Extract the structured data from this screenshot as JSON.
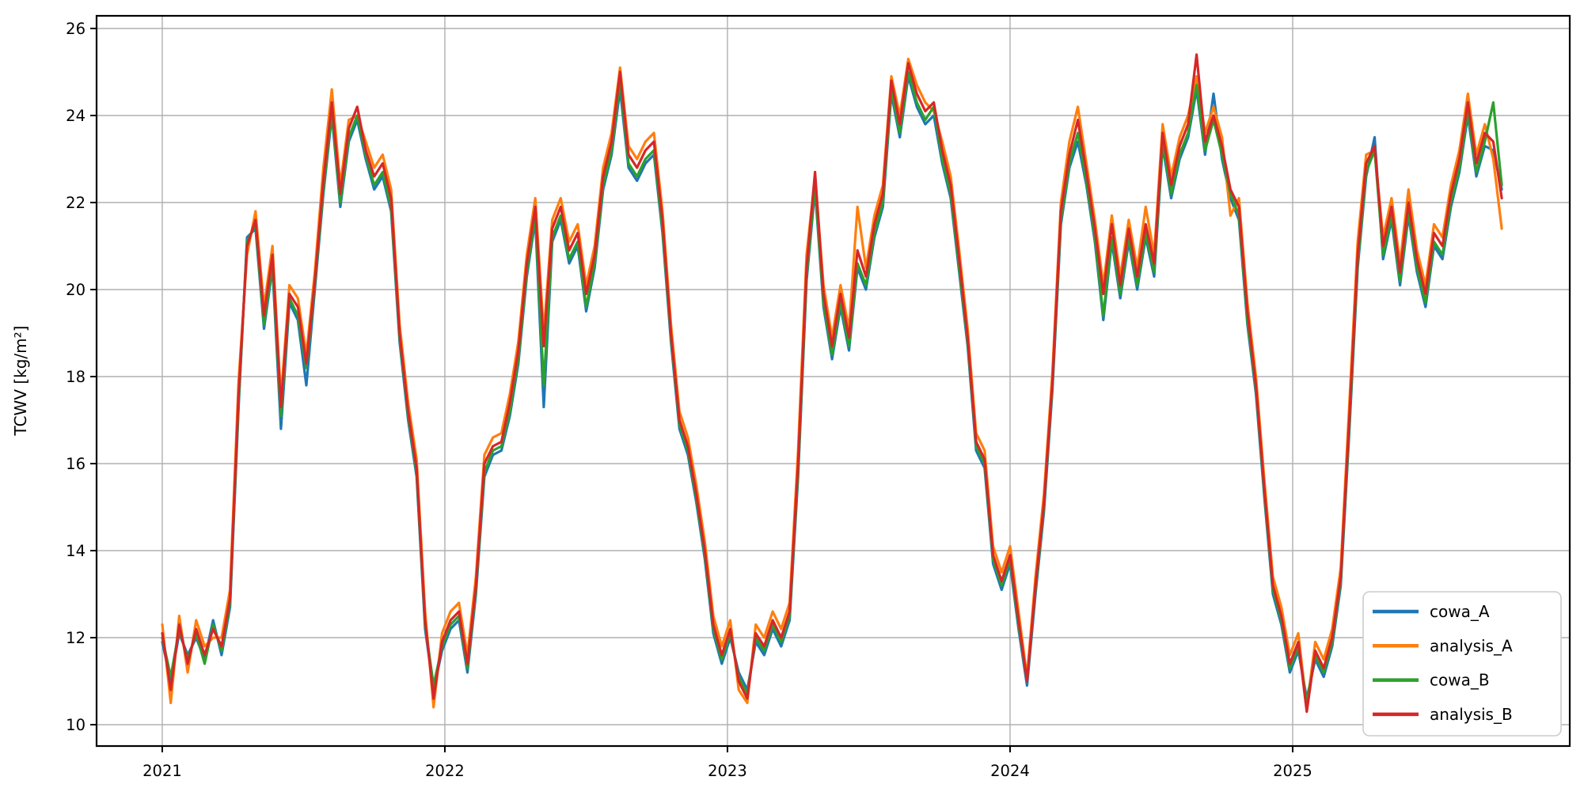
{
  "figure": {
    "background": "#ffffff"
  },
  "axes": {
    "ylabel": "TCWV [kg/m²]",
    "xlabel": "",
    "title": "",
    "yticks": [
      10,
      12,
      14,
      16,
      18,
      20,
      22,
      24,
      26
    ],
    "xticks": [
      2021,
      2022,
      2023,
      2024,
      2025
    ],
    "xlim": [
      2020.7676,
      2025.9805
    ],
    "ylim": [
      9.509,
      26.291
    ],
    "grid": true,
    "grid_color": "#b0b0b0",
    "frame_color": "#000000",
    "tick_color": "#000000"
  },
  "legend": {
    "location": "lower right",
    "border_color": "#cccccc",
    "background": "#ffffff",
    "entries": [
      {
        "label": "cowa_A",
        "color": "#1f77b4"
      },
      {
        "label": "analysis_A",
        "color": "#ff7f0e"
      },
      {
        "label": "cowa_B",
        "color": "#2ca02c"
      },
      {
        "label": "analysis_B",
        "color": "#d62728"
      }
    ]
  },
  "chart_data": {
    "type": "line",
    "title": "",
    "xlabel": "",
    "ylabel": "TCWV [kg/m²]",
    "x_unit": "decimal_year",
    "x_start": 2021.0,
    "x_step_years": 0.03,
    "n_points": 159,
    "x_end": 2025.74,
    "xlim": [
      2020.7676,
      2025.9805
    ],
    "ylim": [
      9.509,
      26.291
    ],
    "legend_position": "lower right",
    "series": [
      {
        "name": "cowa_A",
        "color": "#1f77b4",
        "values": [
          11.9,
          11.0,
          12.1,
          11.6,
          12.0,
          11.5,
          12.4,
          11.6,
          12.7,
          17.3,
          21.2,
          21.4,
          19.1,
          20.5,
          16.8,
          19.7,
          19.3,
          17.8,
          20.0,
          22.2,
          24.0,
          21.9,
          23.4,
          23.9,
          23.0,
          22.3,
          22.6,
          21.8,
          18.8,
          17.0,
          15.7,
          12.2,
          10.8,
          11.7,
          12.2,
          12.4,
          11.2,
          13.0,
          15.7,
          16.2,
          16.3,
          17.1,
          18.3,
          20.3,
          21.6,
          17.3,
          21.1,
          21.6,
          20.6,
          21.0,
          19.5,
          20.5,
          22.3,
          23.1,
          24.6,
          22.8,
          22.5,
          22.9,
          23.1,
          21.3,
          18.8,
          16.8,
          16.2,
          15.1,
          13.8,
          12.1,
          11.4,
          12.0,
          11.2,
          10.8,
          11.9,
          11.6,
          12.2,
          11.8,
          12.4,
          15.7,
          20.2,
          22.3,
          19.6,
          18.4,
          19.6,
          18.6,
          20.5,
          20.0,
          21.2,
          21.9,
          24.5,
          23.5,
          24.9,
          24.2,
          23.8,
          24.0,
          22.9,
          22.1,
          20.4,
          18.7,
          16.3,
          15.9,
          13.7,
          13.1,
          13.7,
          12.2,
          10.9,
          13.0,
          14.9,
          17.7,
          21.5,
          22.8,
          23.4,
          22.4,
          21.1,
          19.3,
          21.1,
          19.8,
          21.1,
          20.0,
          21.2,
          20.3,
          23.3,
          22.1,
          23.0,
          23.5,
          24.6,
          23.1,
          24.5,
          23.0,
          22.1,
          21.6,
          19.2,
          17.6,
          15.2,
          13.0,
          12.3,
          11.2,
          11.7,
          10.6,
          11.5,
          11.1,
          11.8,
          13.2,
          16.7,
          20.5,
          22.6,
          23.5,
          20.7,
          21.6,
          20.1,
          21.7,
          20.4,
          19.6,
          21.0,
          20.7,
          21.9,
          22.7,
          24.0,
          22.6,
          23.3,
          23.2,
          22.3
        ]
      },
      {
        "name": "analysis_A",
        "color": "#ff7f0e",
        "values": [
          12.3,
          10.5,
          12.5,
          11.2,
          12.4,
          11.8,
          12.0,
          12.0,
          13.1,
          17.9,
          20.8,
          21.8,
          19.6,
          21.0,
          17.5,
          20.1,
          19.8,
          18.5,
          20.4,
          22.8,
          24.6,
          22.4,
          23.9,
          24.0,
          23.4,
          22.8,
          23.1,
          22.3,
          19.2,
          17.4,
          16.1,
          12.6,
          10.4,
          12.1,
          12.6,
          12.8,
          11.6,
          13.4,
          16.2,
          16.6,
          16.7,
          17.6,
          18.8,
          20.8,
          22.1,
          19.0,
          21.6,
          22.1,
          21.1,
          21.5,
          20.1,
          21.0,
          22.8,
          23.6,
          25.1,
          23.3,
          23.0,
          23.4,
          23.6,
          21.8,
          19.2,
          17.2,
          16.6,
          15.5,
          14.2,
          12.5,
          11.8,
          12.4,
          10.8,
          10.5,
          12.3,
          12.0,
          12.6,
          12.2,
          12.8,
          16.3,
          20.8,
          22.6,
          20.1,
          18.9,
          20.1,
          19.1,
          21.9,
          20.5,
          21.7,
          22.4,
          24.9,
          24.0,
          25.3,
          24.7,
          24.3,
          24.1,
          23.4,
          22.6,
          20.9,
          19.1,
          16.7,
          16.3,
          14.1,
          13.5,
          14.1,
          12.6,
          11.1,
          13.4,
          15.3,
          18.1,
          22.0,
          23.4,
          24.2,
          22.9,
          21.6,
          20.1,
          21.7,
          20.3,
          21.6,
          20.5,
          21.9,
          20.8,
          23.8,
          22.6,
          23.5,
          24.0,
          24.9,
          23.6,
          24.2,
          23.5,
          21.7,
          22.1,
          19.7,
          18.0,
          15.6,
          13.4,
          12.7,
          11.6,
          12.1,
          10.4,
          11.9,
          11.5,
          12.2,
          13.6,
          17.3,
          21.1,
          23.1,
          23.2,
          21.2,
          22.1,
          20.6,
          22.3,
          20.9,
          20.1,
          21.5,
          21.2,
          22.4,
          23.2,
          24.5,
          23.1,
          23.8,
          23.0,
          21.4
        ]
      },
      {
        "name": "cowa_B",
        "color": "#2ca02c",
        "values": [
          12.0,
          11.1,
          12.2,
          11.5,
          12.1,
          11.4,
          12.3,
          11.7,
          12.8,
          17.4,
          21.1,
          21.5,
          19.2,
          20.6,
          17.1,
          19.8,
          19.4,
          18.2,
          20.1,
          22.3,
          24.1,
          22.0,
          23.5,
          24.0,
          23.1,
          22.4,
          22.7,
          21.9,
          18.9,
          17.1,
          15.8,
          12.3,
          10.9,
          11.8,
          12.3,
          12.5,
          11.3,
          13.1,
          15.8,
          16.3,
          16.4,
          17.2,
          18.4,
          20.4,
          21.7,
          17.8,
          21.2,
          21.7,
          20.7,
          21.1,
          19.6,
          20.6,
          22.4,
          23.2,
          24.8,
          22.9,
          22.6,
          23.0,
          23.2,
          21.4,
          18.9,
          16.9,
          16.3,
          15.2,
          13.9,
          12.2,
          11.5,
          12.1,
          11.1,
          10.7,
          12.0,
          11.7,
          12.3,
          11.9,
          12.5,
          15.8,
          20.3,
          22.4,
          19.7,
          18.5,
          19.7,
          18.7,
          20.6,
          20.1,
          21.3,
          22.0,
          24.6,
          23.6,
          25.0,
          24.3,
          23.9,
          24.2,
          23.0,
          22.2,
          20.5,
          18.8,
          16.4,
          16.0,
          13.8,
          13.2,
          13.8,
          12.3,
          11.0,
          13.1,
          15.0,
          17.8,
          21.6,
          22.9,
          23.6,
          22.5,
          21.2,
          19.4,
          21.2,
          19.9,
          21.2,
          20.1,
          21.3,
          20.4,
          23.4,
          22.2,
          23.1,
          23.6,
          24.7,
          23.2,
          23.9,
          23.1,
          22.2,
          21.7,
          19.3,
          17.7,
          15.3,
          13.1,
          12.4,
          11.3,
          11.8,
          10.5,
          11.6,
          11.2,
          11.9,
          13.3,
          16.8,
          20.6,
          22.7,
          23.2,
          20.8,
          21.7,
          20.2,
          21.8,
          20.5,
          19.7,
          21.1,
          20.8,
          22.0,
          22.8,
          24.1,
          22.7,
          23.4,
          24.3,
          22.4
        ]
      },
      {
        "name": "analysis_B",
        "color": "#d62728",
        "values": [
          12.1,
          10.8,
          12.3,
          11.4,
          12.2,
          11.6,
          12.2,
          11.8,
          12.9,
          17.6,
          21.0,
          21.6,
          19.4,
          20.8,
          17.3,
          19.9,
          19.6,
          18.3,
          20.2,
          22.5,
          24.3,
          22.2,
          23.7,
          24.2,
          23.2,
          22.6,
          22.9,
          22.1,
          19.0,
          17.2,
          15.9,
          12.4,
          10.6,
          11.9,
          12.4,
          12.6,
          11.4,
          13.2,
          16.0,
          16.4,
          16.5,
          17.4,
          18.6,
          20.6,
          21.9,
          18.7,
          21.4,
          21.9,
          20.9,
          21.3,
          19.9,
          20.8,
          22.6,
          23.4,
          25.0,
          23.1,
          22.8,
          23.2,
          23.4,
          21.6,
          19.0,
          17.0,
          16.4,
          15.3,
          14.0,
          12.3,
          11.6,
          12.2,
          11.0,
          10.6,
          12.1,
          11.8,
          12.4,
          12.0,
          12.6,
          16.0,
          20.5,
          22.7,
          19.9,
          18.7,
          19.9,
          18.9,
          20.9,
          20.3,
          21.5,
          22.2,
          24.8,
          23.8,
          25.2,
          24.5,
          24.1,
          24.3,
          23.2,
          22.4,
          20.7,
          18.9,
          16.5,
          16.1,
          13.9,
          13.3,
          13.9,
          12.4,
          11.0,
          13.2,
          15.1,
          17.9,
          21.8,
          23.1,
          23.9,
          22.7,
          21.4,
          19.9,
          21.5,
          20.1,
          21.4,
          20.3,
          21.5,
          20.6,
          23.6,
          22.4,
          23.3,
          23.8,
          25.4,
          23.4,
          24.0,
          23.3,
          22.3,
          21.9,
          19.5,
          17.8,
          15.4,
          13.2,
          12.5,
          11.4,
          11.9,
          10.3,
          11.7,
          11.3,
          12.0,
          13.4,
          17.0,
          20.8,
          22.9,
          23.3,
          21.0,
          21.9,
          20.4,
          22.0,
          20.7,
          19.9,
          21.3,
          21.0,
          22.2,
          23.0,
          24.3,
          22.9,
          23.6,
          23.4,
          22.1
        ]
      }
    ]
  }
}
